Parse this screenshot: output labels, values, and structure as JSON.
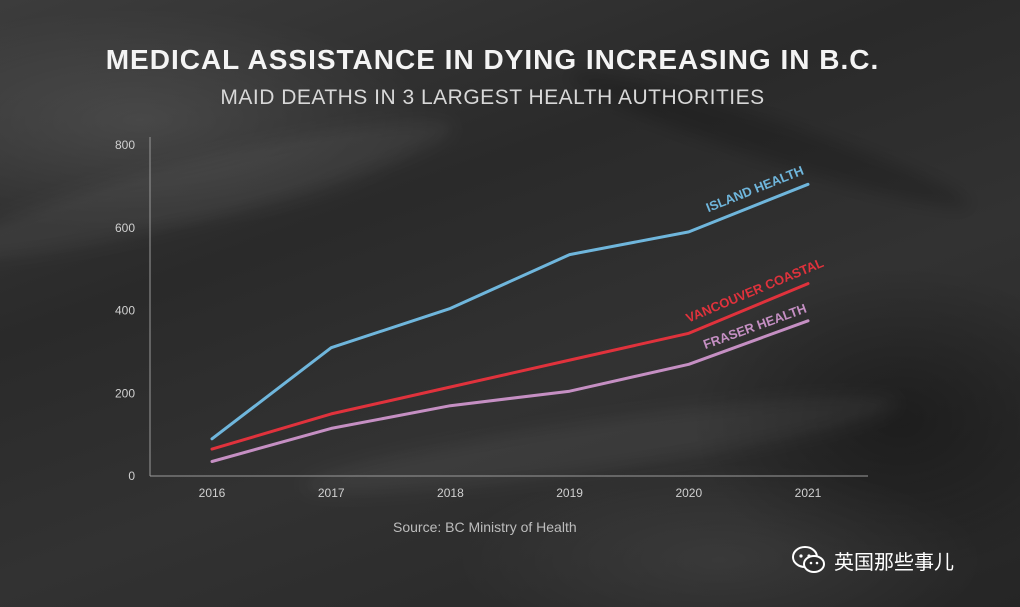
{
  "chart_data": {
    "type": "line",
    "title": "MEDICAL ASSISTANCE IN DYING INCREASING IN B.C.",
    "subtitle": "MAID DEATHS IN 3 LARGEST HEALTH AUTHORITIES",
    "categories": [
      "2016",
      "2017",
      "2018",
      "2019",
      "2020",
      "2021"
    ],
    "ylim": [
      0,
      800
    ],
    "yticks": [
      "0",
      "200",
      "400",
      "600",
      "800"
    ],
    "xlabel": "",
    "ylabel": "",
    "series": [
      {
        "name": "ISLAND HEALTH",
        "color": "#6fb6dc",
        "values": [
          90,
          310,
          405,
          535,
          590,
          705
        ]
      },
      {
        "name": "VANCOUVER COASTAL",
        "color": "#e0323c",
        "values": [
          65,
          150,
          215,
          280,
          345,
          465
        ]
      },
      {
        "name": "FRASER HEALTH",
        "color": "#c58fc3",
        "values": [
          35,
          115,
          170,
          205,
          270,
          375
        ]
      }
    ],
    "source": "Source: BC Ministry of Health"
  },
  "watermark": {
    "icon": "wechat-icon",
    "text": "英国那些事儿"
  }
}
